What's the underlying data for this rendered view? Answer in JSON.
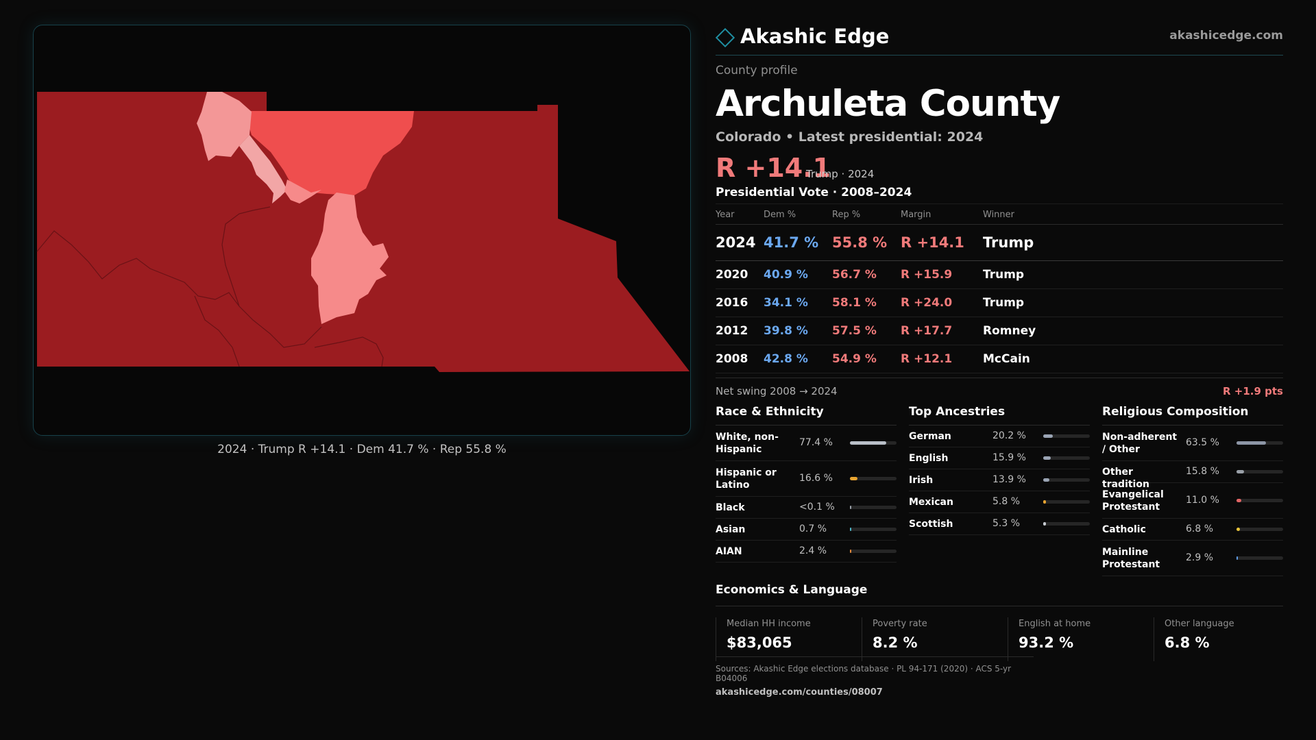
{
  "map": {
    "caption": "2024 · Trump R +14.1 · Dem 41.7 % · Rep 55.8 %",
    "colors": {
      "base": "#9b1c20",
      "mid": "#ef4e4e",
      "light": "#f68a8a",
      "lighter": "#f39797",
      "pink": "#f2a6a6"
    }
  },
  "brand": {
    "name": "Akashic Edge",
    "url": "akashicedge.com",
    "logo_icon": "diamond-icon"
  },
  "profile": {
    "eyebrow": "County profile",
    "title": "Archuleta County",
    "subtitle": "Colorado • Latest presidential: 2024",
    "headline_margin": "R +14.1",
    "headline_winner": "Trump · 2024"
  },
  "votes": {
    "title": "Presidential Vote · 2008–2024",
    "headers": {
      "year": "Year",
      "dem": "Dem %",
      "rep": "Rep %",
      "margin": "Margin",
      "winner": "Winner"
    },
    "rows": [
      {
        "year": "2024",
        "dem": "41.7 %",
        "rep": "55.8 %",
        "margin": "R +14.1",
        "winner": "Trump"
      },
      {
        "year": "2020",
        "dem": "40.9 %",
        "rep": "56.7 %",
        "margin": "R +15.9",
        "winner": "Trump"
      },
      {
        "year": "2016",
        "dem": "34.1 %",
        "rep": "58.1 %",
        "margin": "R +24.0",
        "winner": "Trump"
      },
      {
        "year": "2012",
        "dem": "39.8 %",
        "rep": "57.5 %",
        "margin": "R +17.7",
        "winner": "Romney"
      },
      {
        "year": "2008",
        "dem": "42.8 %",
        "rep": "54.9 %",
        "margin": "R +12.1",
        "winner": "McCain"
      }
    ],
    "swing_label": "Net swing 2008 → 2024",
    "swing_value": "R +1.9 pts"
  },
  "race": {
    "title": "Race & Ethnicity",
    "rows": [
      {
        "label": "White, non-Hispanic",
        "value": "77.4 %",
        "share": 0.774,
        "color": "#b9bfc8"
      },
      {
        "label": "Hispanic or Latino",
        "value": "16.6 %",
        "share": 0.166,
        "color": "#e9a531"
      },
      {
        "label": "Black",
        "value": "<0.1 %",
        "share": 0.001,
        "color": "#9aa0a8"
      },
      {
        "label": "Asian",
        "value": "0.7 %",
        "share": 0.007,
        "color": "#4fb7c9"
      },
      {
        "label": "AIAN",
        "value": "2.4 %",
        "share": 0.024,
        "color": "#e58a3a"
      }
    ]
  },
  "ancestry": {
    "title": "Top Ancestries",
    "rows": [
      {
        "label": "German",
        "value": "20.2 %",
        "share": 0.202,
        "color": "#9aa4b4"
      },
      {
        "label": "English",
        "value": "15.9 %",
        "share": 0.159,
        "color": "#9aa4b4"
      },
      {
        "label": "Irish",
        "value": "13.9 %",
        "share": 0.139,
        "color": "#9aa4b4"
      },
      {
        "label": "Mexican",
        "value": "5.8 %",
        "share": 0.058,
        "color": "#e9a531"
      },
      {
        "label": "Scottish",
        "value": "5.3 %",
        "share": 0.053,
        "color": "#c8ccd2"
      }
    ]
  },
  "religion": {
    "title": "Religious Composition",
    "rows": [
      {
        "label": "Non-adherent / Other",
        "value": "63.5 %",
        "share": 0.635,
        "color": "#8d96a6"
      },
      {
        "label": "Other tradition",
        "value": "15.8 %",
        "share": 0.158,
        "color": "#9aa0a8"
      },
      {
        "label": "Evangelical Protestant",
        "value": "11.0 %",
        "share": 0.11,
        "color": "#e26565"
      },
      {
        "label": "Catholic",
        "value": "6.8 %",
        "share": 0.068,
        "color": "#e9c53a"
      },
      {
        "label": "Mainline Protestant",
        "value": "2.9 %",
        "share": 0.029,
        "color": "#5f9ee8"
      }
    ]
  },
  "economics": {
    "title": "Economics & Language",
    "cards": [
      {
        "label": "Median HH income",
        "value": "$83,065"
      },
      {
        "label": "Poverty rate",
        "value": "8.2 %"
      },
      {
        "label": "English at home",
        "value": "93.2 %"
      },
      {
        "label": "Other language",
        "value": "6.8 %"
      }
    ]
  },
  "footer": {
    "sources": "Sources: Akashic Edge elections database · PL 94-171 (2020) · ACS 5-yr B04006",
    "link": "akashicedge.com/counties/08007"
  }
}
